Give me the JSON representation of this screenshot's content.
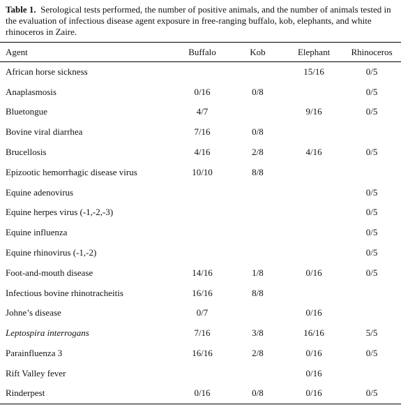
{
  "table": {
    "caption_label": "Table 1.",
    "caption": "Serological tests performed, the number of positive animals, and the number of animals tested in the evaluation of infectious disease agent exposure in free-ranging buffalo, kob, elephants, and white rhinoceros in Zaire.",
    "headers": [
      "Agent",
      "Buffalo",
      "Kob",
      "Elephant",
      "Rhinoceros"
    ],
    "rows": [
      [
        "African horse sickness",
        null,
        null,
        "15/16",
        "0/5"
      ],
      [
        "Anaplasmosis",
        "0/16",
        "0/8",
        null,
        "0/5"
      ],
      [
        "Bluetongue",
        "4/7",
        null,
        "9/16",
        "0/5"
      ],
      [
        "Bovine viral diarrhea",
        "7/16",
        "0/8",
        null,
        null
      ],
      [
        "Brucellosis",
        "4/16",
        "2/8",
        "4/16",
        "0/5"
      ],
      [
        "Epizootic hemorrhagic disease virus",
        "10/10",
        "8/8",
        null,
        null
      ],
      [
        "Equine adenovirus",
        null,
        null,
        null,
        "0/5"
      ],
      [
        "Equine herpes virus (-1,-2,-3)",
        null,
        null,
        null,
        "0/5"
      ],
      [
        "Equine influenza",
        null,
        null,
        null,
        "0/5"
      ],
      [
        "Equine rhinovirus (-1,-2)",
        null,
        null,
        null,
        "0/5"
      ],
      [
        "Foot-and-mouth disease",
        "14/16",
        "1/8",
        "0/16",
        "0/5"
      ],
      [
        "Infectious bovine rhinotracheitis",
        "16/16",
        "8/8",
        null,
        null
      ],
      [
        "Johne’s disease",
        "0/7",
        null,
        "0/16",
        null
      ],
      [
        "Leptospira interrogans",
        "7/16",
        "3/8",
        "16/16",
        "5/5"
      ],
      [
        "Parainfluenza 3",
        "16/16",
        "2/8",
        "0/16",
        "0/5"
      ],
      [
        "Rift Valley fever",
        null,
        null,
        "0/16",
        null
      ],
      [
        "Rinderpest",
        "0/16",
        "0/8",
        "0/16",
        "0/5"
      ]
    ]
  }
}
